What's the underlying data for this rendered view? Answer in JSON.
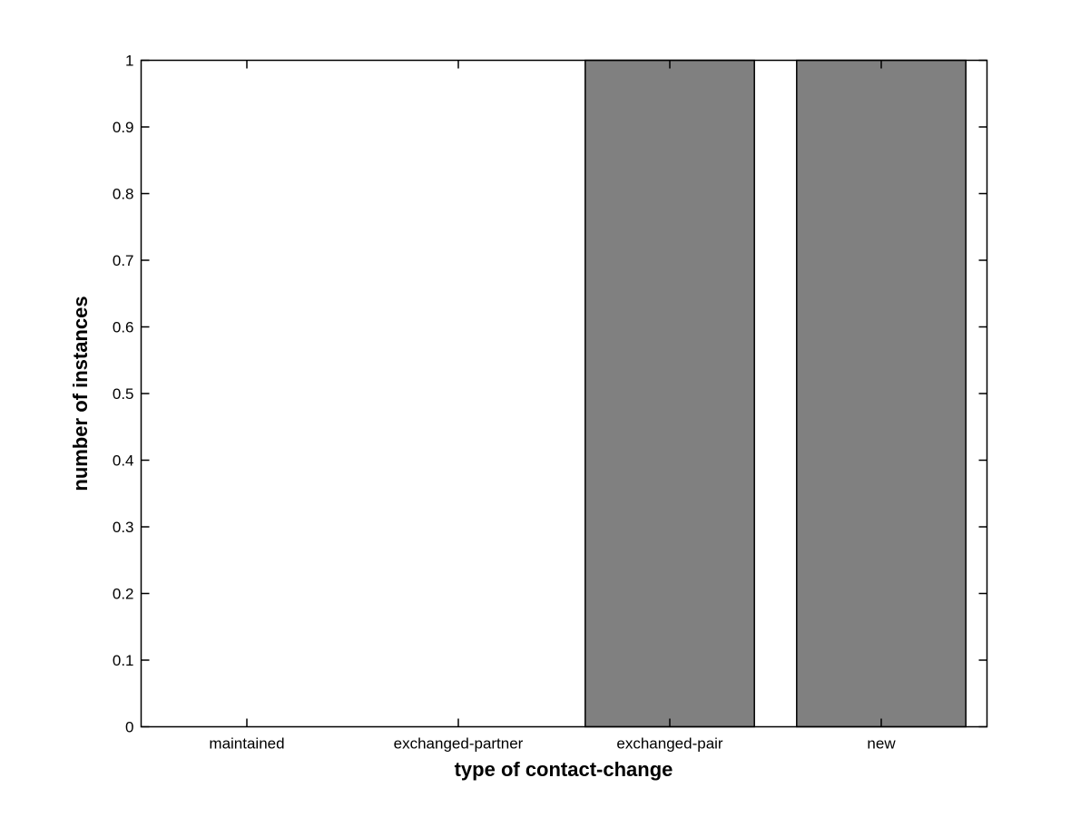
{
  "figure": {
    "background_color": "#ffffff"
  },
  "chart_data": {
    "type": "bar",
    "categories": [
      "maintained",
      "exchanged-partner",
      "exchanged-pair",
      "new"
    ],
    "values": [
      0,
      0,
      1,
      1
    ],
    "title": "",
    "xlabel": "type of contact-change",
    "ylabel": "number of instances",
    "ylim": [
      0,
      1
    ],
    "ytick_labels": [
      "0",
      "0.1",
      "0.2",
      "0.3",
      "0.4",
      "0.5",
      "0.6",
      "0.7",
      "0.8",
      "0.9",
      "1"
    ],
    "bar_color": "#808080",
    "bar_edge_color": "#000000",
    "axis_color": "#000000",
    "bar_width_fraction": 0.8,
    "grid": false,
    "legend": "none",
    "box": true,
    "tick_direction": "in"
  }
}
